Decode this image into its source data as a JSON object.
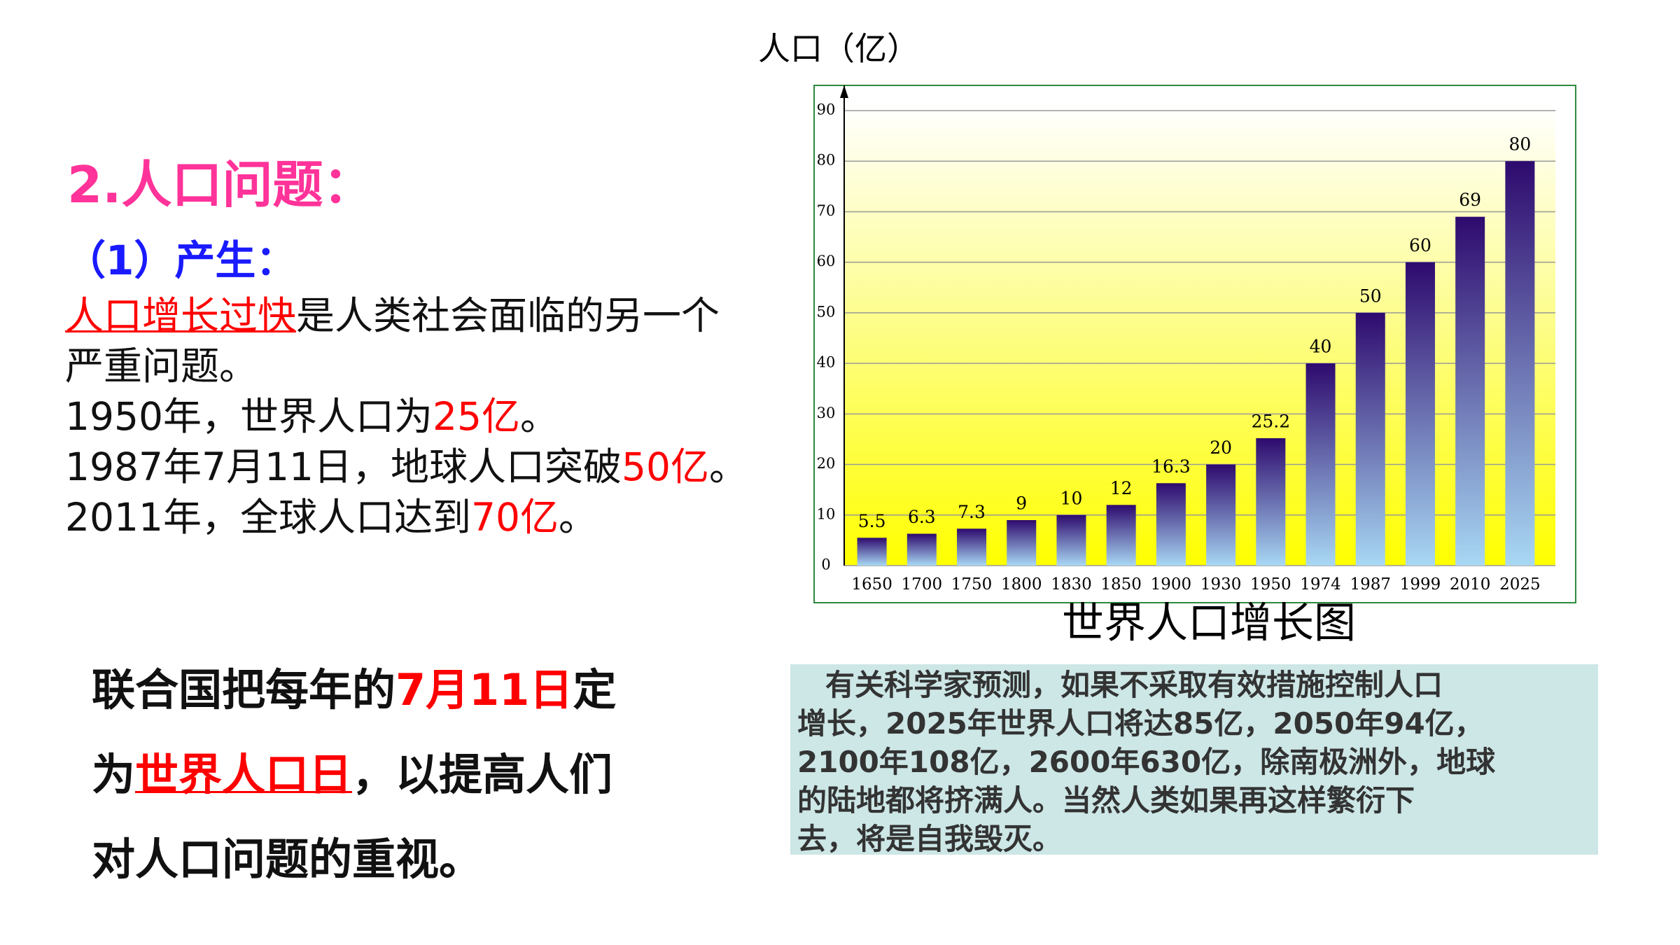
{
  "heading": "2.人口问题：",
  "subheading": "（1）产生：",
  "paragraph": [
    [
      "人口增长过快",
      "是人类社会面临的另一个"
    ],
    [
      "严重问题。"
    ],
    [
      "1950年，世界人口为",
      "25亿",
      "。"
    ],
    [
      "1987年7月11日，地球人口突破",
      "50亿",
      "。"
    ],
    [
      "2011年，全球人口达到",
      "70亿",
      "。"
    ]
  ],
  "statement": [
    [
      "联合国把每年的",
      "7月11日",
      "定"
    ],
    [
      "为",
      "世界人口日",
      "，以提高人们"
    ],
    [
      "对人口问题的重视。"
    ]
  ],
  "prediction": [
    "有关科学家预测，如果不采取有效措施控制人口",
    "增长，2025年世界人口将达85亿，2050年94亿，",
    "2100年108亿，2600年630亿，除南极洲外，地球",
    "的陆地都将挤满人。当然人类如果再这样繁衍下",
    "去，将是自我毁灭。"
  ],
  "chart_data": {
    "type": "bar",
    "title": "世界人口增长图",
    "y_label": "人口（亿）",
    "categories": [
      "1650",
      "1700",
      "1750",
      "1800",
      "1830",
      "1850",
      "1900",
      "1930",
      "1950",
      "1974",
      "1987",
      "1999",
      "2010",
      "2025"
    ],
    "values": [
      5.5,
      6.3,
      7.3,
      9,
      10,
      12,
      16.3,
      20,
      25.2,
      40,
      50,
      60,
      69,
      80
    ],
    "ylim": [
      0,
      90
    ],
    "yticks": [
      0,
      10,
      20,
      30,
      40,
      50,
      60,
      70,
      80,
      90
    ],
    "grid": true
  }
}
